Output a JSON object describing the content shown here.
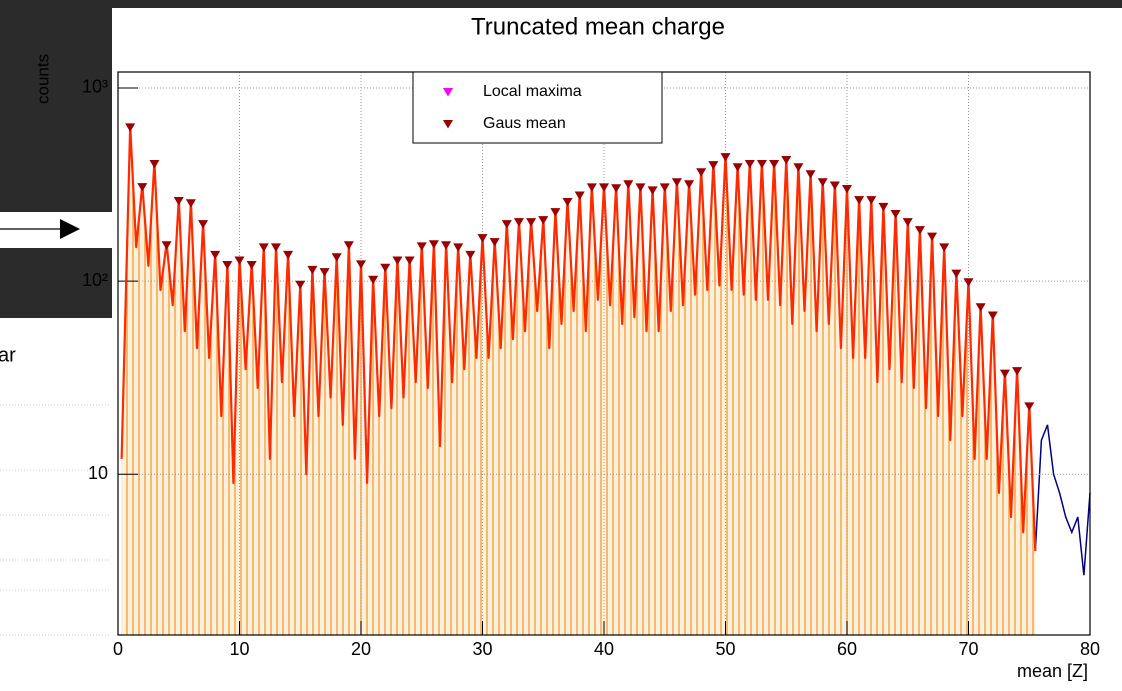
{
  "background": {
    "fragment": "ar"
  },
  "chart_data": {
    "type": "scatter",
    "title": "Truncated mean charge",
    "x_label": "mean [Z]",
    "y_label": "counts",
    "xlim": [
      0,
      80
    ],
    "xticks": [
      0,
      10,
      20,
      30,
      40,
      50,
      60,
      70,
      80
    ],
    "ylim": [
      1.47,
      1210
    ],
    "log_y": true,
    "yticks": [
      10,
      {
        "value": 100,
        "label": "10²"
      },
      {
        "value": 1000,
        "label": "10³"
      }
    ],
    "grid": true,
    "legend": "top",
    "x": [
      1,
      2,
      3,
      4,
      5,
      6,
      7,
      8,
      9,
      10,
      11,
      12,
      13,
      14,
      15,
      16,
      17,
      18,
      19,
      20,
      21,
      22,
      23,
      24,
      25,
      26,
      27,
      28,
      29,
      30,
      31,
      32,
      33,
      34,
      35,
      36,
      37,
      38,
      39,
      40,
      41,
      42,
      43,
      44,
      45,
      46,
      47,
      48,
      49,
      50,
      51,
      52,
      53,
      54,
      55,
      56,
      57,
      58,
      59,
      60,
      61,
      62,
      63,
      64,
      65,
      66,
      67,
      68,
      69,
      70,
      71,
      72,
      73,
      74,
      75
    ],
    "series": [
      {
        "name": "Local maxima",
        "color": "#ff00ff",
        "values": [
          640,
          314,
          414,
          157,
          266,
          259,
          202,
          140,
          124,
          131,
          124,
          153,
          153,
          140,
          98,
          117,
          114,
          136,
          157,
          125,
          104,
          120,
          131,
          131,
          155,
          159,
          157,
          153,
          140,
          171,
          163,
          202,
          207,
          207,
          212,
          233,
          263,
          284,
          313,
          313,
          310,
          325,
          313,
          302,
          313,
          333,
          325,
          375,
          408,
          449,
          398,
          414,
          414,
          414,
          434,
          398,
          366,
          333,
          320,
          307,
          269,
          269,
          248,
          228,
          207,
          188,
          174,
          153,
          112,
          101,
          75,
          68,
          34,
          35,
          23
        ]
      },
      {
        "name": "Gaus mean",
        "color": "#990000",
        "values": [
          640,
          314,
          414,
          157,
          266,
          259,
          202,
          140,
          124,
          131,
          124,
          153,
          153,
          140,
          98,
          117,
          114,
          136,
          157,
          125,
          104,
          120,
          131,
          131,
          155,
          159,
          157,
          153,
          140,
          171,
          163,
          202,
          207,
          207,
          212,
          233,
          263,
          284,
          313,
          313,
          310,
          325,
          313,
          302,
          313,
          333,
          325,
          375,
          408,
          449,
          398,
          414,
          414,
          414,
          434,
          398,
          366,
          333,
          320,
          307,
          269,
          269,
          248,
          228,
          207,
          188,
          174,
          153,
          112,
          101,
          75,
          68,
          34,
          35,
          23
        ]
      }
    ],
    "histogram": {
      "color": "#ff2a00",
      "fill": "#f5a33c",
      "x": [
        0.3,
        1,
        1.5,
        2,
        2.5,
        3,
        3.5,
        4,
        4.5,
        5,
        5.5,
        6,
        6.5,
        7,
        7.5,
        8,
        8.5,
        9,
        9.5,
        10,
        10.5,
        11,
        11.5,
        12,
        12.5,
        13,
        13.5,
        14,
        14.5,
        15,
        15.5,
        16,
        16.5,
        17,
        17.5,
        18,
        18.5,
        19,
        19.5,
        20,
        20.5,
        21,
        21.5,
        22,
        22.5,
        23,
        23.5,
        24,
        24.5,
        25,
        25.5,
        26,
        26.5,
        27,
        27.5,
        28,
        28.5,
        29,
        29.5,
        30,
        30.5,
        31,
        31.5,
        32,
        32.5,
        33,
        33.5,
        34,
        34.5,
        35,
        35.5,
        36,
        36.5,
        37,
        37.5,
        38,
        38.5,
        39,
        39.5,
        40,
        40.5,
        41,
        41.5,
        42,
        42.5,
        43,
        43.5,
        44,
        44.5,
        45,
        45.5,
        46,
        46.5,
        47,
        47.5,
        48,
        48.5,
        49,
        49.5,
        50,
        50.5,
        51,
        51.5,
        52,
        52.5,
        53,
        53.5,
        54,
        54.5,
        55,
        55.5,
        56,
        56.5,
        57,
        57.5,
        58,
        58.5,
        59,
        59.5,
        60,
        60.5,
        61,
        61.5,
        62,
        62.5,
        63,
        63.5,
        64,
        64.5,
        65,
        65.5,
        66,
        66.5,
        67,
        67.5,
        68,
        68.5,
        69,
        69.5,
        70,
        70.5,
        71,
        71.5,
        72,
        72.5,
        73,
        73.5,
        74,
        74.5,
        75,
        75.5
      ],
      "values": [
        12,
        640,
        150,
        314,
        120,
        414,
        90,
        157,
        75,
        266,
        55,
        259,
        45,
        202,
        40,
        140,
        20,
        124,
        9,
        131,
        35,
        124,
        28,
        153,
        12,
        153,
        30,
        140,
        20,
        98,
        10,
        117,
        20,
        114,
        25,
        136,
        18,
        157,
        12,
        125,
        9,
        104,
        20,
        120,
        22,
        131,
        25,
        131,
        30,
        155,
        28,
        159,
        14,
        157,
        30,
        153,
        35,
        140,
        40,
        171,
        40,
        163,
        45,
        202,
        50,
        207,
        55,
        207,
        70,
        212,
        45,
        233,
        60,
        263,
        70,
        284,
        55,
        313,
        80,
        313,
        75,
        310,
        60,
        325,
        65,
        313,
        55,
        302,
        55,
        313,
        70,
        333,
        75,
        325,
        85,
        375,
        90,
        408,
        95,
        449,
        90,
        398,
        85,
        414,
        80,
        414,
        80,
        414,
        75,
        434,
        60,
        398,
        70,
        366,
        55,
        333,
        60,
        320,
        45,
        307,
        40,
        269,
        40,
        269,
        30,
        248,
        35,
        228,
        30,
        207,
        28,
        188,
        22,
        174,
        20,
        153,
        15,
        112,
        20,
        101,
        12,
        75,
        12,
        68,
        8,
        34,
        6,
        35,
        5,
        23,
        4
      ]
    },
    "tail": {
      "color": "#000080",
      "x": [
        75.5,
        76,
        76.5,
        77,
        77.5,
        78,
        78.5,
        79,
        79.5,
        80
      ],
      "values": [
        4,
        15,
        18,
        10,
        8,
        6,
        5,
        6,
        3,
        8
      ]
    }
  }
}
